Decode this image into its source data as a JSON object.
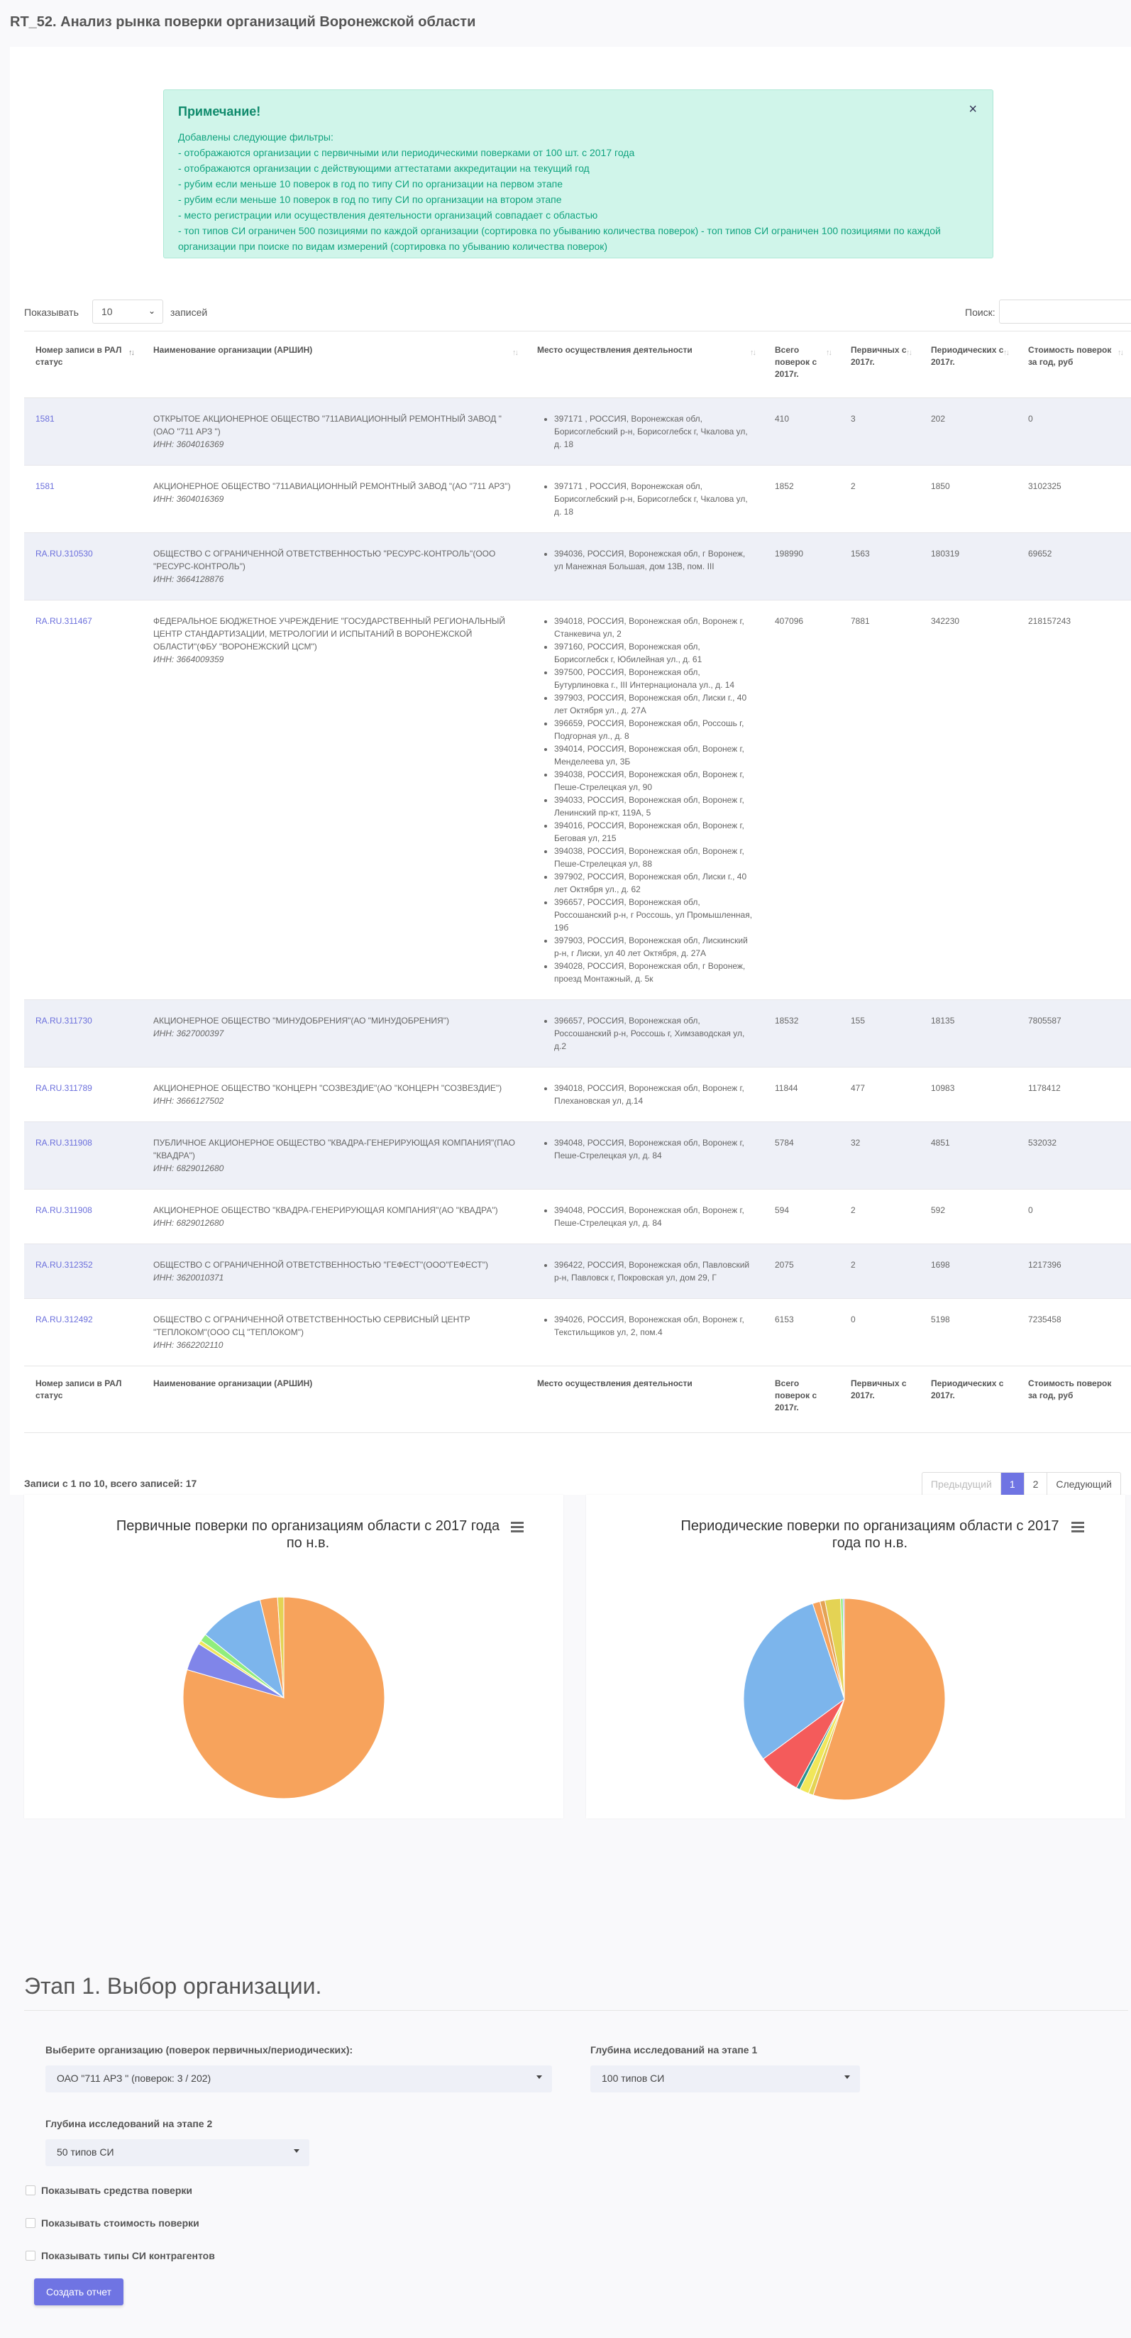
{
  "page": {
    "title": "RT_52. Анализ рынка поверки организаций Воронежской области"
  },
  "alert": {
    "title": "Примечание!",
    "close_icon": "×",
    "lines": [
      "Добавлены следующие фильтры:",
      "- отображаются организации с первичными или периодическими поверками от 100 шт. с 2017 года",
      "- отображаются организации с действующими аттестатами аккредитации на текущий год",
      "- рубим если меньше 10 поверок в год по типу СИ по организации на первом этапе",
      "- рубим если меньше 10 поверок в год по типу СИ по организации на втором этапе",
      "- место регистрации или осуществления деятельности организаций совпадает с областью",
      "- топ типов СИ ограничен 500 позициями по каждой организации (сортировка по убыванию количества поверок) - топ типов СИ ограничен 100 позициями по каждой",
      "организации при поиске по видам измерений (сортировка по убыванию количества поверок)"
    ]
  },
  "controls": {
    "show_label": "Показывать",
    "page_size": "10",
    "records_label": "записей",
    "search_label": "Поиск:",
    "search_value": ""
  },
  "table": {
    "headers": [
      "Номер записи в РАЛ статус",
      "Наименование организации (АРШИН)",
      "Место осуществления деятельности",
      "Всего поверок с 2017г.",
      "Первичных с 2017г.",
      "Периодических с 2017г.",
      "Стоимость поверок за год, руб"
    ],
    "footers": [
      "Номер записи в РАЛ статус",
      "Наименование организации (АРШИН)",
      "Место осуществления деятельности",
      "Всего поверок с 2017г.",
      "Первичных с 2017г.",
      "Периодических с 2017г.",
      "Стоимость поверок за год, руб"
    ],
    "rows": [
      {
        "ral": "1581",
        "name": "ОТКРЫТОЕ АКЦИОНЕРНОЕ ОБЩЕСТВО \"711АВИАЦИОННЫЙ РЕМОНТНЫЙ ЗАВОД \"(ОАО \"711 АРЗ \")",
        "inn": "ИНН: 3604016369",
        "places": [
          "397171 , РОССИЯ, Воронежская обл, Борисоглебский р-н, Борисоглебск г, Чкалова ул, д. 18"
        ],
        "total": "410",
        "primary": "3",
        "periodic": "202",
        "cost": "0"
      },
      {
        "ral": "1581",
        "name": "АКЦИОНЕРНОЕ ОБЩЕСТВО \"711АВИАЦИОННЫЙ РЕМОНТНЫЙ ЗАВОД \"(АО \"711 АРЗ\")",
        "inn": "ИНН: 3604016369",
        "places": [
          "397171 , РОССИЯ, Воронежская обл, Борисоглебский р-н, Борисоглебск г, Чкалова ул, д. 18"
        ],
        "total": "1852",
        "primary": "2",
        "periodic": "1850",
        "cost": "3102325"
      },
      {
        "ral": "RA.RU.310530",
        "name": "ОБЩЕСТВО С ОГРАНИЧЕННОЙ ОТВЕТСТВЕННОСТЬЮ \"РЕСУРС-КОНТРОЛЬ\"(ООО \"РЕСУРС-КОНТРОЛЬ\")",
        "inn": "ИНН: 3664128876",
        "places": [
          "394036, РОССИЯ, Воронежская обл, г Воронеж, ул Манежная Большая, дом 13В, пом. III"
        ],
        "total": "198990",
        "primary": "1563",
        "periodic": "180319",
        "cost": "69652"
      },
      {
        "ral": "RA.RU.311467",
        "name": "ФЕДЕРАЛЬНОЕ БЮДЖЕТНОЕ УЧРЕЖДЕНИЕ \"ГОСУДАРСТВЕННЫЙ РЕГИОНАЛЬНЫЙ ЦЕНТР СТАНДАРТИЗАЦИИ, МЕТРОЛОГИИ И ИСПЫТАНИЙ В ВОРОНЕЖСКОЙ ОБЛАСТИ\"(ФБУ \"ВОРОНЕЖСКИЙ ЦСМ\")",
        "inn": "ИНН: 3664009359",
        "places": [
          "394018, РОССИЯ, Воронежская обл, Воронеж г, Станкевича ул, 2",
          "397160, РОССИЯ, Воронежская обл, Борисоглебск г, Юбилейная ул., д. 61",
          "397500, РОССИЯ, Воронежская обл, Бутурлиновка г., III Интернационала ул., д. 14",
          "397903, РОССИЯ, Воронежская обл, Лиски г., 40 лет Октября ул., д. 27А",
          "396659, РОССИЯ, Воронежская обл, Россошь г, Подгорная ул., д. 8",
          "394014, РОССИЯ, Воронежская обл, Воронеж г, Менделеева ул, 3Б",
          "394038, РОССИЯ, Воронежская обл, Воронеж г, Пеше-Стрелецкая ул, 90",
          "394033, РОССИЯ, Воронежская обл, Воронеж г, Ленинский пр-кт, 119А, 5",
          "394016, РОССИЯ, Воронежская обл, Воронеж г, Беговая ул, 215",
          "394038, РОССИЯ, Воронежская обл, Воронеж г, Пеше-Стрелецкая ул, 88",
          "397902, РОССИЯ, Воронежская обл, Лиски г., 40 лет Октября ул., д. 62",
          "396657, РОССИЯ, Воронежская обл, Россошанский р-н, г Россошь, ул Промышленная, 19б",
          "397903, РОССИЯ, Воронежская обл, Лискинский р-н, г Лиски, ул 40 лет Октября, д. 27А",
          "394028, РОССИЯ, Воронежская обл, г Воронеж, проезд Монтажный, д. 5к"
        ],
        "total": "407096",
        "primary": "7881",
        "periodic": "342230",
        "cost": "218157243"
      },
      {
        "ral": "RA.RU.311730",
        "name": "АКЦИОНЕРНОЕ ОБЩЕСТВО \"МИНУДОБРЕНИЯ\"(АО \"МИНУДОБРЕНИЯ\")",
        "inn": "ИНН: 3627000397",
        "places": [
          "396657, РОССИЯ, Воронежская обл, Россошанский р-н, Россошь г, Химзаводская ул, д.2"
        ],
        "total": "18532",
        "primary": "155",
        "periodic": "18135",
        "cost": "7805587"
      },
      {
        "ral": "RA.RU.311789",
        "name": "АКЦИОНЕРНОЕ ОБЩЕСТВО \"КОНЦЕРН \"СОЗВЕЗДИЕ\"(АО \"КОНЦЕРН \"СОЗВЕЗДИЕ\")",
        "inn": "ИНН: 3666127502",
        "places": [
          "394018, РОССИЯ, Воронежская обл, Воронеж г, Плехановская ул, д.14"
        ],
        "total": "11844",
        "primary": "477",
        "periodic": "10983",
        "cost": "1178412"
      },
      {
        "ral": "RA.RU.311908",
        "name": "ПУБЛИЧНОЕ АКЦИОНЕРНОЕ ОБЩЕСТВО \"КВАДРА-ГЕНЕРИРУЮЩАЯ КОМПАНИЯ\"(ПАО \"КВАДРА\")",
        "inn": "ИНН: 6829012680",
        "places": [
          "394048, РОССИЯ, Воронежская обл, Воронеж г, Пеше-Стрелецкая ул, д. 84"
        ],
        "total": "5784",
        "primary": "32",
        "periodic": "4851",
        "cost": "532032"
      },
      {
        "ral": "RA.RU.311908",
        "name": "АКЦИОНЕРНОЕ ОБЩЕСТВО \"КВАДРА-ГЕНЕРИРУЮЩАЯ КОМПАНИЯ\"(АО \"КВАДРА\")",
        "inn": "ИНН: 6829012680",
        "places": [
          "394048, РОССИЯ, Воронежская обл, Воронеж г, Пеше-Стрелецкая ул, д. 84"
        ],
        "total": "594",
        "primary": "2",
        "periodic": "592",
        "cost": "0"
      },
      {
        "ral": "RA.RU.312352",
        "name": "ОБЩЕСТВО С ОГРАНИЧЕННОЙ ОТВЕТСТВЕННОСТЬЮ \"ГЕФЕСТ\"(ООО\"ГЕФЕСТ\")",
        "inn": "ИНН: 3620010371",
        "places": [
          "396422, РОССИЯ, Воронежская обл, Павловский р-н, Павловск г, Покровская ул, дом 29, Г"
        ],
        "total": "2075",
        "primary": "2",
        "periodic": "1698",
        "cost": "1217396"
      },
      {
        "ral": "RA.RU.312492",
        "name": "ОБЩЕСТВО С ОГРАНИЧЕННОЙ ОТВЕТСТВЕННОСТЬЮ СЕРВИСНЫЙ ЦЕНТР \"ТЕПЛОКОМ\"(ООО СЦ \"ТЕПЛОКОМ\")",
        "inn": "ИНН: 3662202110",
        "places": [
          "394026, РОССИЯ, Воронежская обл, Воронеж г, Текстильщиков ул, 2, пом.4"
        ],
        "total": "6153",
        "primary": "0",
        "periodic": "5198",
        "cost": "7235458"
      }
    ]
  },
  "info": "Записи с 1 по 10, всего записей: 17",
  "pagination": {
    "prev": "Предыдущий",
    "pages": [
      "1",
      "2"
    ],
    "next": "Следующий"
  },
  "chart_data": [
    {
      "type": "pie",
      "title": "Первичные поверки по организациям области с 2017 года по н.в.",
      "values": [
        0.795,
        0.045,
        0.006,
        0.012,
        0.104,
        0.028,
        0.01
      ],
      "colors": [
        "#f7a35c",
        "#8085e9",
        "#f1e75a",
        "#90ed7d",
        "#7cb5ec",
        "#f7a35c",
        "#e4d354"
      ]
    },
    {
      "type": "pie",
      "title": "Периодические поверки по организациям области с 2017 года по н.в.",
      "values": [
        0.55,
        0.008,
        0.015,
        0.006,
        0.07,
        0.3,
        0.012,
        0.008,
        0.025,
        0.004,
        0.002
      ],
      "colors": [
        "#f7a35c",
        "#e4d354",
        "#f1e75a",
        "#2b908f",
        "#f45b5b",
        "#7cb5ec",
        "#f7a35c",
        "#e4a354",
        "#e4d354",
        "#90ed7d",
        "#8085e9"
      ]
    }
  ],
  "stage": {
    "title": "Этап 1. Выбор организации.",
    "org_label": "Выберите организацию (поверок первичных/периодических):",
    "org_value": "ОАО \"711 АРЗ \" (поверок: 3 / 202)",
    "depth1_label": "Глубина исследований на этапе 1",
    "depth1_value": "100 типов СИ",
    "depth2_label": "Глубина исследований на этапе 2",
    "depth2_value": "50 типов СИ",
    "check1": "Показывать средства поверки",
    "check2": "Показывать стоимость поверки",
    "check3": "Показывать типы СИ контрагентов",
    "button": "Создать отчет"
  }
}
